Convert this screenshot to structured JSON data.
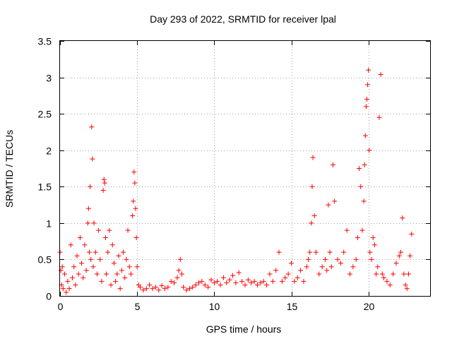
{
  "chart_data": {
    "type": "scatter",
    "title": "Day 293 of 2022, SRMTID for receiver lpal",
    "xlabel": "GPS time / hours",
    "ylabel": "SRMTID / TECUs",
    "xlim": [
      0,
      24
    ],
    "ylim": [
      0,
      3.5
    ],
    "xticks": [
      0,
      5,
      10,
      15,
      20
    ],
    "xtick_labels": [
      "0",
      "5",
      "10",
      "15",
      "20"
    ],
    "yticks": [
      0,
      0.5,
      1,
      1.5,
      2,
      2.5,
      3,
      3.5
    ],
    "ytick_labels": [
      "0",
      "0.5",
      "1",
      "1.5",
      "2",
      "2.5",
      "3",
      "3.5"
    ],
    "grid": true,
    "marker": "+",
    "series": [
      {
        "name": "SRMTID",
        "color": "#ff0000",
        "x": [
          0.0,
          0.05,
          0.1,
          0.15,
          0.2,
          0.3,
          0.4,
          0.5,
          0.6,
          0.7,
          0.8,
          0.9,
          1.0,
          1.1,
          1.2,
          1.3,
          1.4,
          1.5,
          1.6,
          1.7,
          1.8,
          1.85,
          1.9,
          1.95,
          2.0,
          2.05,
          2.1,
          2.15,
          2.2,
          2.3,
          2.4,
          2.5,
          2.6,
          2.7,
          2.8,
          2.85,
          2.9,
          2.95,
          3.0,
          3.1,
          3.2,
          3.3,
          3.4,
          3.5,
          3.6,
          3.7,
          3.8,
          3.9,
          4.0,
          4.1,
          4.2,
          4.3,
          4.4,
          4.5,
          4.6,
          4.7,
          4.75,
          4.8,
          4.85,
          4.9,
          4.95,
          5.0,
          5.1,
          5.2,
          5.4,
          5.6,
          5.8,
          6.0,
          6.2,
          6.4,
          6.6,
          6.8,
          7.0,
          7.2,
          7.4,
          7.6,
          7.7,
          7.8,
          7.9,
          8.0,
          8.2,
          8.4,
          8.6,
          8.8,
          9.0,
          9.2,
          9.4,
          9.6,
          9.8,
          10.0,
          10.2,
          10.4,
          10.6,
          10.8,
          11.0,
          11.2,
          11.4,
          11.6,
          11.8,
          12.0,
          12.2,
          12.4,
          12.6,
          12.8,
          13.0,
          13.2,
          13.4,
          13.6,
          13.8,
          14.0,
          14.2,
          14.4,
          14.6,
          14.8,
          15.0,
          15.2,
          15.4,
          15.6,
          15.8,
          16.0,
          16.1,
          16.2,
          16.3,
          16.35,
          16.4,
          16.5,
          16.6,
          16.8,
          17.0,
          17.2,
          17.3,
          17.4,
          17.5,
          17.6,
          17.7,
          17.8,
          18.0,
          18.2,
          18.4,
          18.6,
          18.8,
          19.0,
          19.2,
          19.3,
          19.4,
          19.5,
          19.6,
          19.7,
          19.75,
          19.8,
          19.85,
          19.9,
          19.95,
          20.0,
          20.05,
          20.1,
          20.2,
          20.3,
          20.4,
          20.5,
          20.6,
          20.7,
          20.8,
          20.9,
          21.0,
          21.2,
          21.4,
          21.6,
          21.8,
          22.0,
          22.1,
          22.2,
          22.3,
          22.4,
          22.5,
          22.6,
          22.7,
          22.8
        ],
        "y": [
          0.6,
          0.35,
          0.15,
          0.4,
          0.1,
          0.3,
          0.05,
          0.2,
          0.1,
          0.7,
          0.25,
          0.4,
          0.15,
          0.55,
          0.3,
          0.8,
          0.45,
          0.25,
          0.7,
          0.35,
          1.0,
          1.2,
          0.6,
          1.5,
          0.5,
          2.32,
          1.88,
          0.4,
          1.0,
          0.6,
          0.3,
          0.9,
          0.5,
          0.2,
          1.45,
          1.6,
          1.55,
          0.8,
          0.3,
          0.6,
          0.9,
          0.15,
          0.7,
          0.45,
          0.2,
          0.3,
          0.55,
          0.1,
          0.35,
          0.6,
          0.25,
          0.5,
          0.9,
          0.4,
          0.3,
          1.1,
          1.3,
          1.7,
          1.55,
          1.2,
          0.8,
          0.4,
          0.15,
          0.12,
          0.08,
          0.1,
          0.15,
          0.1,
          0.12,
          0.08,
          0.14,
          0.1,
          0.12,
          0.2,
          0.18,
          0.25,
          0.35,
          0.5,
          0.3,
          0.12,
          0.08,
          0.1,
          0.12,
          0.15,
          0.18,
          0.2,
          0.15,
          0.12,
          0.22,
          0.18,
          0.2,
          0.15,
          0.25,
          0.18,
          0.22,
          0.28,
          0.18,
          0.32,
          0.2,
          0.15,
          0.22,
          0.18,
          0.2,
          0.15,
          0.18,
          0.2,
          0.15,
          0.3,
          0.2,
          0.35,
          0.6,
          0.2,
          0.25,
          0.3,
          0.45,
          0.2,
          0.25,
          0.35,
          0.2,
          0.4,
          0.5,
          0.6,
          1.0,
          1.5,
          1.9,
          1.1,
          0.6,
          0.3,
          0.4,
          0.5,
          0.35,
          1.25,
          0.6,
          0.4,
          1.8,
          1.3,
          0.5,
          0.45,
          0.6,
          0.9,
          0.3,
          0.4,
          0.5,
          0.8,
          1.75,
          1.5,
          0.9,
          1.3,
          1.8,
          2.2,
          2.6,
          2.7,
          2.9,
          3.1,
          2.0,
          0.6,
          0.5,
          0.8,
          0.7,
          0.3,
          0.4,
          2.45,
          3.04,
          0.3,
          0.25,
          0.2,
          0.15,
          0.3,
          0.45,
          0.55,
          0.6,
          1.07,
          0.3,
          0.15,
          0.1,
          0.3,
          0.55,
          0.85
        ]
      }
    ]
  }
}
